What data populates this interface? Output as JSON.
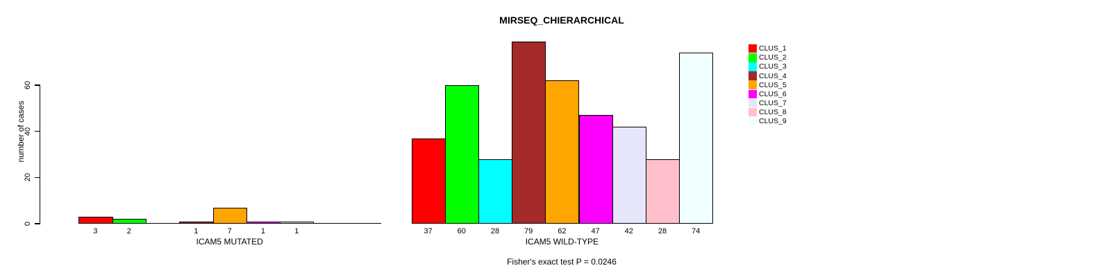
{
  "title": "MIRSEQ_CHIERARCHICAL",
  "footer": "Fisher's exact test P = 0.0246",
  "chart_data": {
    "type": "bar",
    "title": "MIRSEQ_CHIERARCHICAL",
    "ylabel": "number of cases",
    "xlabel": "",
    "y_ticks": [
      0,
      20,
      40,
      60
    ],
    "ylim": [
      0,
      60
    ],
    "grid": false,
    "legend_position": "right-outside",
    "bar_border_color": "#000000",
    "legend": [
      {
        "label": "CLUS_1",
        "color": "#ff0000"
      },
      {
        "label": "CLUS_2",
        "color": "#00ff00"
      },
      {
        "label": "CLUS_3",
        "color": "#00ffff"
      },
      {
        "label": "CLUS_4",
        "color": "#a52a2a"
      },
      {
        "label": "CLUS_5",
        "color": "#ffa500"
      },
      {
        "label": "CLUS_6",
        "color": "#ff00ff"
      },
      {
        "label": "CLUS_7",
        "color": "#e6e6fa"
      },
      {
        "label": "CLUS_8",
        "color": "#ffc0cb"
      },
      {
        "label": "CLUS_9",
        "color": "#f0ffff"
      }
    ],
    "groups": [
      {
        "label": "ICAM5 MUTATED",
        "values": [
          3,
          2,
          0,
          1,
          7,
          1,
          1,
          0,
          0
        ]
      },
      {
        "label": "ICAM5 WILD-TYPE",
        "values": [
          37,
          60,
          28,
          79,
          62,
          47,
          42,
          28,
          74
        ]
      }
    ],
    "annotation": "Fisher's exact test P = 0.0246"
  }
}
